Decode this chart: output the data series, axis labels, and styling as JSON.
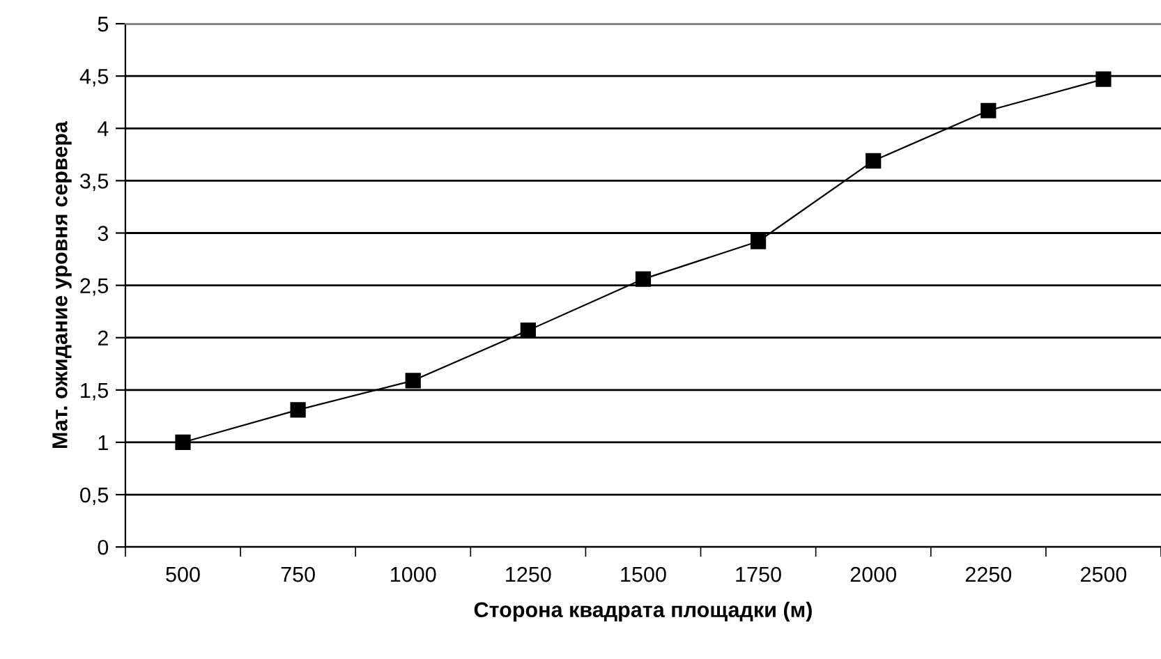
{
  "chart_data": {
    "type": "line",
    "xlabel": "Сторона квадрата площадки (м)",
    "ylabel": "Мат. ожидание уровня сервера",
    "categories": [
      "500",
      "750",
      "1000",
      "1250",
      "1500",
      "1750",
      "2000",
      "2250",
      "2500"
    ],
    "series": [
      {
        "color": "#000000",
        "values": [
          1.0,
          1.31,
          1.59,
          2.07,
          2.56,
          2.92,
          3.69,
          4.17,
          4.47
        ]
      }
    ],
    "ylim": [
      0,
      5
    ],
    "yticks": [
      0,
      {
        "value": 0.5,
        "label": "0,5"
      },
      1,
      {
        "value": 1.5,
        "label": "1,5"
      },
      2,
      {
        "value": 2.5,
        "label": "2,5"
      },
      3,
      {
        "value": 3.5,
        "label": "3,5"
      },
      4,
      {
        "value": 4.5,
        "label": "4,5"
      },
      5
    ],
    "grid": "y",
    "marker": "square",
    "line_style": "solid",
    "legend": false
  }
}
